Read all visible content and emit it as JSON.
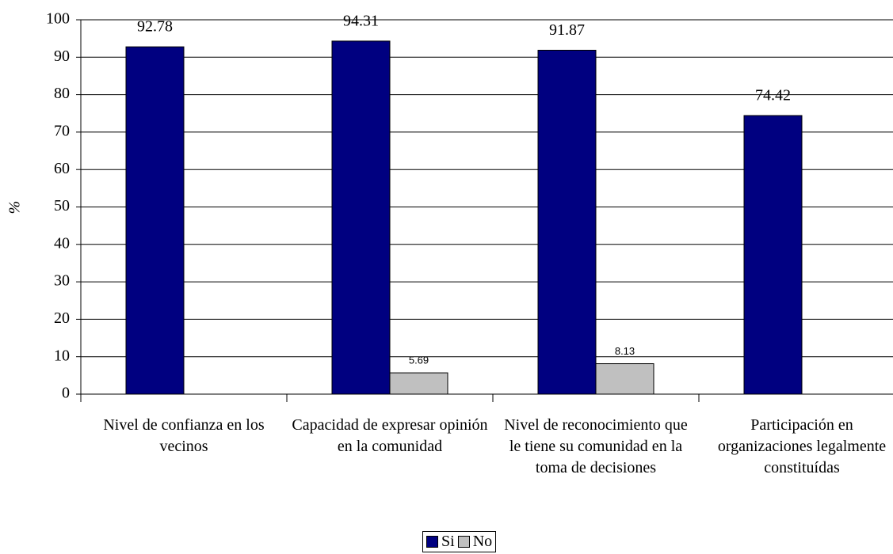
{
  "chart_data": {
    "type": "bar",
    "y_label": "%",
    "categories": [
      "Nivel de confianza en los vecinos",
      "Capacidad de expresar opinión en la comunidad",
      "Nivel de reconocimiento que le tiene su comunidad en la toma de decisiones",
      "Participación en organizaciones legalmente constituídas"
    ],
    "series": [
      {
        "name": "Si",
        "color": "#000080",
        "values": [
          92.78,
          94.31,
          91.87,
          74.42
        ]
      },
      {
        "name": "No",
        "color": "#c0c0c0",
        "values": [
          null,
          5.69,
          8.13,
          null
        ]
      }
    ],
    "ylim": [
      0,
      100
    ],
    "yticks": [
      0,
      10,
      20,
      30,
      40,
      50,
      60,
      70,
      80,
      90,
      100
    ],
    "grid": true,
    "legend": "bottom"
  }
}
